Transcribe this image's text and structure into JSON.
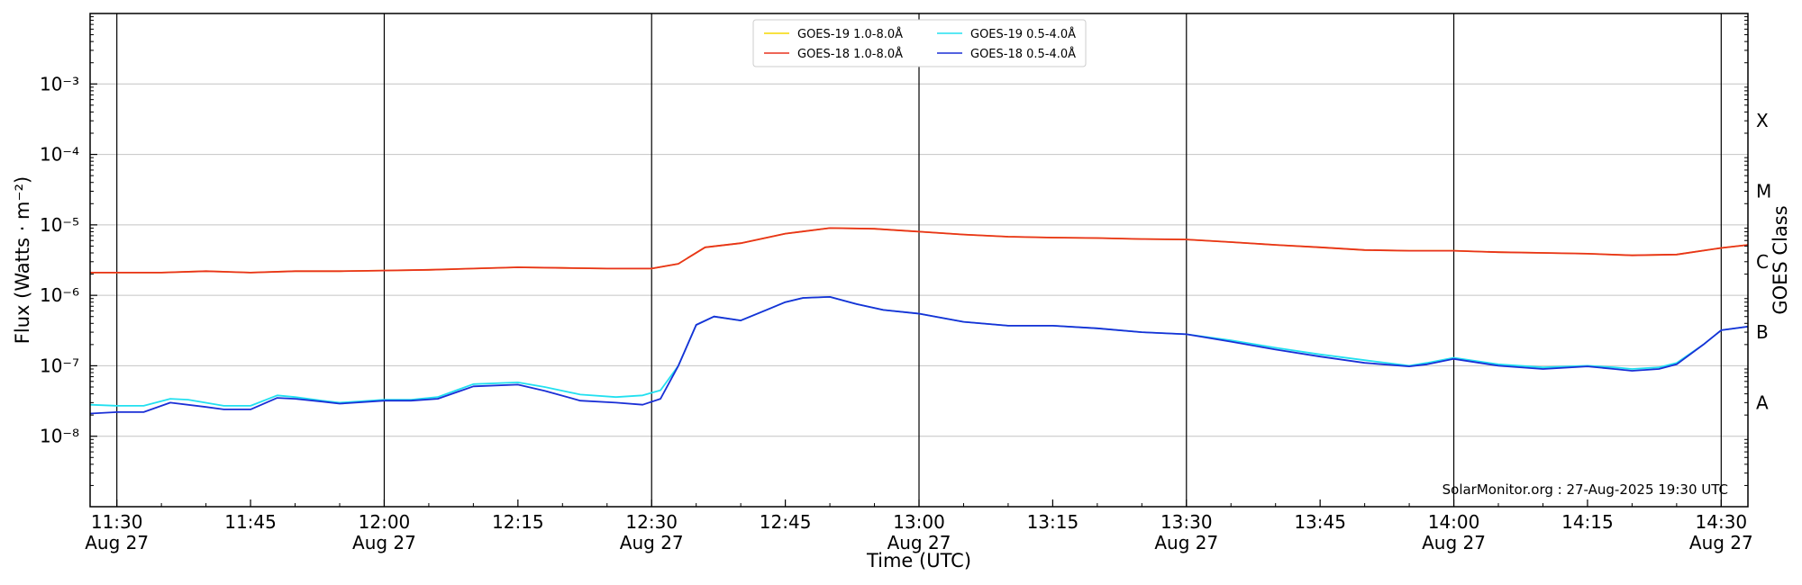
{
  "chart_data": {
    "type": "line",
    "title": "",
    "xlabel": "Time (UTC)",
    "ylabel": "Flux (Watts · m⁻²)",
    "y2label": "GOES Class",
    "yscale": "log",
    "ylim": [
      1e-09,
      0.01
    ],
    "xlim": [
      "11:27",
      "14:33"
    ],
    "x_ticks": [
      {
        "t": "11:30",
        "top": "11:30",
        "bottom": "Aug 27"
      },
      {
        "t": "11:45",
        "top": "11:45",
        "bottom": ""
      },
      {
        "t": "12:00",
        "top": "12:00",
        "bottom": "Aug 27"
      },
      {
        "t": "12:15",
        "top": "12:15",
        "bottom": ""
      },
      {
        "t": "12:30",
        "top": "12:30",
        "bottom": "Aug 27"
      },
      {
        "t": "12:45",
        "top": "12:45",
        "bottom": ""
      },
      {
        "t": "13:00",
        "top": "13:00",
        "bottom": "Aug 27"
      },
      {
        "t": "13:15",
        "top": "13:15",
        "bottom": ""
      },
      {
        "t": "13:30",
        "top": "13:30",
        "bottom": "Aug 27"
      },
      {
        "t": "13:45",
        "top": "13:45",
        "bottom": ""
      },
      {
        "t": "14:00",
        "top": "14:00",
        "bottom": "Aug 27"
      },
      {
        "t": "14:15",
        "top": "14:15",
        "bottom": ""
      },
      {
        "t": "14:30",
        "top": "14:30",
        "bottom": "Aug 27"
      }
    ],
    "y_ticks": [
      {
        "value": 1e-08,
        "label": "10⁻⁸"
      },
      {
        "value": 1e-07,
        "label": "10⁻⁷"
      },
      {
        "value": 1e-06,
        "label": "10⁻⁶"
      },
      {
        "value": 1e-05,
        "label": "10⁻⁵"
      },
      {
        "value": 0.0001,
        "label": "10⁻⁴"
      },
      {
        "value": 0.001,
        "label": "10⁻³"
      }
    ],
    "goes_classes": [
      {
        "label": "A",
        "value": 3e-08
      },
      {
        "label": "B",
        "value": 3e-07
      },
      {
        "label": "C",
        "value": 3e-06
      },
      {
        "label": "M",
        "value": 3e-05
      },
      {
        "label": "X",
        "value": 0.0003
      }
    ],
    "grid": true,
    "legend_placement": "top-center",
    "credit": "SolarMonitor.org : 27-Aug-2025 19:30 UTC",
    "series": [
      {
        "name": "GOES-19 1.0-8.0Å",
        "color": "#f5d800",
        "points": [
          [
            "11:27",
            2.1e-06
          ],
          [
            "11:30",
            2.1e-06
          ],
          [
            "11:35",
            2.1e-06
          ],
          [
            "11:40",
            2.2e-06
          ],
          [
            "11:45",
            2.1e-06
          ],
          [
            "11:50",
            2.2e-06
          ],
          [
            "11:55",
            2.2e-06
          ],
          [
            "12:00",
            2.25e-06
          ],
          [
            "12:05",
            2.3e-06
          ],
          [
            "12:10",
            2.4e-06
          ],
          [
            "12:15",
            2.5e-06
          ],
          [
            "12:20",
            2.45e-06
          ],
          [
            "12:25",
            2.4e-06
          ],
          [
            "12:30",
            2.4e-06
          ],
          [
            "12:33",
            2.8e-06
          ],
          [
            "12:36",
            4.8e-06
          ],
          [
            "12:40",
            5.5e-06
          ],
          [
            "12:45",
            7.5e-06
          ],
          [
            "12:50",
            9e-06
          ],
          [
            "12:55",
            8.8e-06
          ],
          [
            "13:00",
            8e-06
          ],
          [
            "13:05",
            7.3e-06
          ],
          [
            "13:10",
            6.8e-06
          ],
          [
            "13:15",
            6.6e-06
          ],
          [
            "13:20",
            6.5e-06
          ],
          [
            "13:25",
            6.3e-06
          ],
          [
            "13:30",
            6.2e-06
          ],
          [
            "13:35",
            5.7e-06
          ],
          [
            "13:40",
            5.2e-06
          ],
          [
            "13:45",
            4.8e-06
          ],
          [
            "13:50",
            4.4e-06
          ],
          [
            "13:55",
            4.3e-06
          ],
          [
            "14:00",
            4.3e-06
          ],
          [
            "14:05",
            4.1e-06
          ],
          [
            "14:10",
            4e-06
          ],
          [
            "14:15",
            3.9e-06
          ],
          [
            "14:20",
            3.7e-06
          ],
          [
            "14:25",
            3.8e-06
          ],
          [
            "14:30",
            4.7e-06
          ],
          [
            "14:33",
            5.2e-06
          ]
        ]
      },
      {
        "name": "GOES-18 1.0-8.0Å",
        "color": "#e8321e",
        "points": [
          [
            "11:27",
            2.1e-06
          ],
          [
            "11:30",
            2.1e-06
          ],
          [
            "11:35",
            2.1e-06
          ],
          [
            "11:40",
            2.2e-06
          ],
          [
            "11:45",
            2.1e-06
          ],
          [
            "11:50",
            2.2e-06
          ],
          [
            "11:55",
            2.2e-06
          ],
          [
            "12:00",
            2.25e-06
          ],
          [
            "12:05",
            2.3e-06
          ],
          [
            "12:10",
            2.4e-06
          ],
          [
            "12:15",
            2.5e-06
          ],
          [
            "12:20",
            2.45e-06
          ],
          [
            "12:25",
            2.4e-06
          ],
          [
            "12:30",
            2.4e-06
          ],
          [
            "12:33",
            2.8e-06
          ],
          [
            "12:36",
            4.8e-06
          ],
          [
            "12:40",
            5.5e-06
          ],
          [
            "12:45",
            7.5e-06
          ],
          [
            "12:50",
            9e-06
          ],
          [
            "12:55",
            8.8e-06
          ],
          [
            "13:00",
            8e-06
          ],
          [
            "13:05",
            7.3e-06
          ],
          [
            "13:10",
            6.8e-06
          ],
          [
            "13:15",
            6.6e-06
          ],
          [
            "13:20",
            6.5e-06
          ],
          [
            "13:25",
            6.3e-06
          ],
          [
            "13:30",
            6.2e-06
          ],
          [
            "13:35",
            5.7e-06
          ],
          [
            "13:40",
            5.2e-06
          ],
          [
            "13:45",
            4.8e-06
          ],
          [
            "13:50",
            4.4e-06
          ],
          [
            "13:55",
            4.3e-06
          ],
          [
            "14:00",
            4.3e-06
          ],
          [
            "14:05",
            4.1e-06
          ],
          [
            "14:10",
            4e-06
          ],
          [
            "14:15",
            3.9e-06
          ],
          [
            "14:20",
            3.7e-06
          ],
          [
            "14:25",
            3.8e-06
          ],
          [
            "14:30",
            4.7e-06
          ],
          [
            "14:33",
            5.2e-06
          ]
        ]
      },
      {
        "name": "GOES-19 0.5-4.0Å",
        "color": "#22e0f0",
        "points": [
          [
            "11:27",
            2.8e-08
          ],
          [
            "11:30",
            2.7e-08
          ],
          [
            "11:33",
            2.7e-08
          ],
          [
            "11:36",
            3.4e-08
          ],
          [
            "11:38",
            3.3e-08
          ],
          [
            "11:42",
            2.7e-08
          ],
          [
            "11:45",
            2.7e-08
          ],
          [
            "11:48",
            3.8e-08
          ],
          [
            "11:50",
            3.6e-08
          ],
          [
            "11:53",
            3.2e-08
          ],
          [
            "11:55",
            3e-08
          ],
          [
            "12:00",
            3.3e-08
          ],
          [
            "12:03",
            3.3e-08
          ],
          [
            "12:06",
            3.6e-08
          ],
          [
            "12:10",
            5.5e-08
          ],
          [
            "12:15",
            5.8e-08
          ],
          [
            "12:18",
            5e-08
          ],
          [
            "12:22",
            3.9e-08
          ],
          [
            "12:26",
            3.6e-08
          ],
          [
            "12:29",
            3.8e-08
          ],
          [
            "12:31",
            4.5e-08
          ],
          [
            "12:33",
            1e-07
          ],
          [
            "12:35",
            3.8e-07
          ],
          [
            "12:37",
            5e-07
          ],
          [
            "12:40",
            4.4e-07
          ],
          [
            "12:43",
            6.3e-07
          ],
          [
            "12:45",
            8e-07
          ],
          [
            "12:47",
            9.2e-07
          ],
          [
            "12:50",
            9.5e-07
          ],
          [
            "12:53",
            7.5e-07
          ],
          [
            "12:56",
            6.2e-07
          ],
          [
            "13:00",
            5.5e-07
          ],
          [
            "13:05",
            4.2e-07
          ],
          [
            "13:10",
            3.7e-07
          ],
          [
            "13:15",
            3.7e-07
          ],
          [
            "13:20",
            3.4e-07
          ],
          [
            "13:25",
            3e-07
          ],
          [
            "13:30",
            2.8e-07
          ],
          [
            "13:35",
            2.3e-07
          ],
          [
            "13:40",
            1.8e-07
          ],
          [
            "13:45",
            1.45e-07
          ],
          [
            "13:50",
            1.2e-07
          ],
          [
            "13:55",
            1e-07
          ],
          [
            "13:57",
            1.1e-07
          ],
          [
            "14:00",
            1.3e-07
          ],
          [
            "14:05",
            1.05e-07
          ],
          [
            "14:10",
            9.5e-08
          ],
          [
            "14:15",
            1e-07
          ],
          [
            "14:18",
            9.5e-08
          ],
          [
            "14:20",
            9e-08
          ],
          [
            "14:23",
            9.5e-08
          ],
          [
            "14:25",
            1.1e-07
          ],
          [
            "14:28",
            2e-07
          ],
          [
            "14:30",
            3.2e-07
          ],
          [
            "14:33",
            3.6e-07
          ]
        ]
      },
      {
        "name": "GOES-18 0.5-4.0Å",
        "color": "#1a2fd6",
        "points": [
          [
            "11:27",
            2.1e-08
          ],
          [
            "11:30",
            2.2e-08
          ],
          [
            "11:33",
            2.2e-08
          ],
          [
            "11:36",
            3e-08
          ],
          [
            "11:40",
            2.6e-08
          ],
          [
            "11:42",
            2.4e-08
          ],
          [
            "11:45",
            2.4e-08
          ],
          [
            "11:48",
            3.5e-08
          ],
          [
            "11:50",
            3.4e-08
          ],
          [
            "11:53",
            3.1e-08
          ],
          [
            "11:55",
            2.9e-08
          ],
          [
            "12:00",
            3.2e-08
          ],
          [
            "12:03",
            3.2e-08
          ],
          [
            "12:06",
            3.4e-08
          ],
          [
            "12:10",
            5.1e-08
          ],
          [
            "12:15",
            5.4e-08
          ],
          [
            "12:18",
            4.4e-08
          ],
          [
            "12:22",
            3.2e-08
          ],
          [
            "12:26",
            3e-08
          ],
          [
            "12:29",
            2.8e-08
          ],
          [
            "12:31",
            3.4e-08
          ],
          [
            "12:33",
            1e-07
          ],
          [
            "12:35",
            3.8e-07
          ],
          [
            "12:37",
            5e-07
          ],
          [
            "12:40",
            4.4e-07
          ],
          [
            "12:43",
            6.3e-07
          ],
          [
            "12:45",
            8e-07
          ],
          [
            "12:47",
            9.2e-07
          ],
          [
            "12:50",
            9.5e-07
          ],
          [
            "12:53",
            7.5e-07
          ],
          [
            "12:56",
            6.2e-07
          ],
          [
            "13:00",
            5.5e-07
          ],
          [
            "13:05",
            4.2e-07
          ],
          [
            "13:10",
            3.7e-07
          ],
          [
            "13:15",
            3.7e-07
          ],
          [
            "13:20",
            3.4e-07
          ],
          [
            "13:25",
            3e-07
          ],
          [
            "13:30",
            2.8e-07
          ],
          [
            "13:35",
            2.2e-07
          ],
          [
            "13:40",
            1.7e-07
          ],
          [
            "13:45",
            1.35e-07
          ],
          [
            "13:50",
            1.1e-07
          ],
          [
            "13:55",
            9.8e-08
          ],
          [
            "13:57",
            1.05e-07
          ],
          [
            "14:00",
            1.25e-07
          ],
          [
            "14:05",
            1e-07
          ],
          [
            "14:10",
            9e-08
          ],
          [
            "14:15",
            9.8e-08
          ],
          [
            "14:18",
            9e-08
          ],
          [
            "14:20",
            8.5e-08
          ],
          [
            "14:23",
            9e-08
          ],
          [
            "14:25",
            1.05e-07
          ],
          [
            "14:28",
            2e-07
          ],
          [
            "14:30",
            3.2e-07
          ],
          [
            "14:33",
            3.6e-07
          ]
        ]
      }
    ]
  }
}
